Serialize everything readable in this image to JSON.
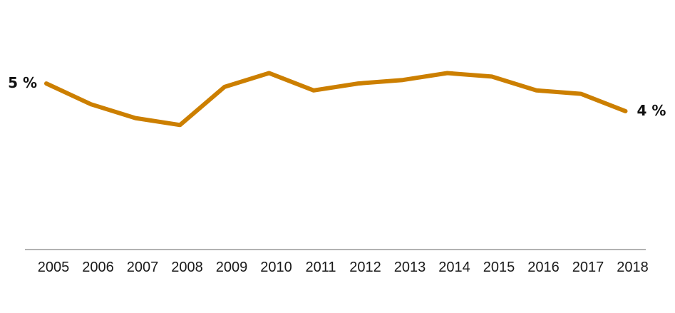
{
  "chart_data": {
    "type": "line",
    "title": "",
    "xlabel": "",
    "ylabel": "",
    "x": [
      "2005",
      "2006",
      "2007",
      "2008",
      "2009",
      "2010",
      "2011",
      "2012",
      "2013",
      "2014",
      "2015",
      "2016",
      "2017",
      "2018"
    ],
    "series": [
      {
        "values": [
          4.8,
          4.5,
          4.3,
          4.2,
          4.75,
          4.95,
          4.7,
          4.8,
          4.85,
          4.95,
          4.9,
          4.7,
          4.65,
          4.4
        ],
        "color": "#cc7f00"
      }
    ],
    "ylim": [
      2.4,
      5.8
    ],
    "grid": false,
    "legend": "none",
    "data_labels": [
      {
        "index": 0,
        "text": "5 %",
        "side": "left"
      },
      {
        "index": 13,
        "text": "4 %",
        "side": "right"
      }
    ],
    "axis_color": "#999999"
  }
}
